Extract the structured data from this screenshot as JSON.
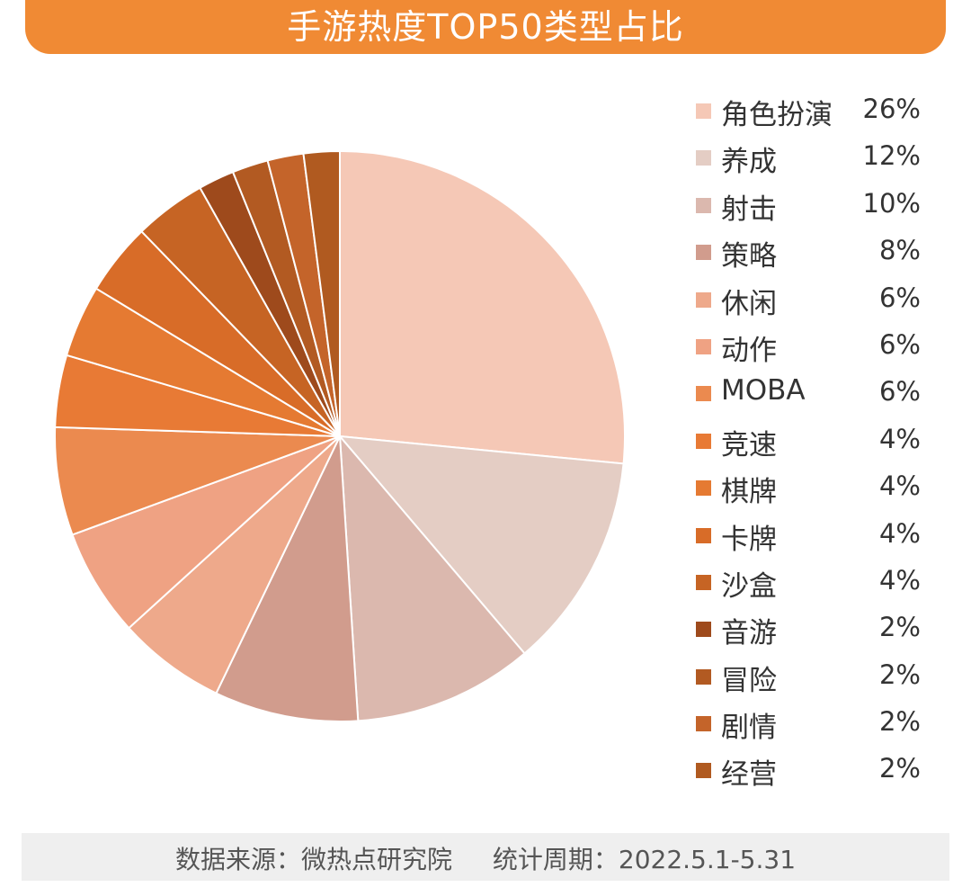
{
  "chart_data": {
    "type": "pie",
    "title": "手游热度TOP50类型占比",
    "start_angle": "12 o'clock, clockwise",
    "slices": [
      {
        "label": "角色扮演",
        "value": 26,
        "value_label": "26%",
        "color": "#f5c8b6"
      },
      {
        "label": "养成",
        "value": 12,
        "value_label": "12%",
        "color": "#e4cdc4"
      },
      {
        "label": "射击",
        "value": 10,
        "value_label": "10%",
        "color": "#dbb8ae"
      },
      {
        "label": "策略",
        "value": 8,
        "value_label": "8%",
        "color": "#d19c8d"
      },
      {
        "label": "休闲",
        "value": 6,
        "value_label": "6%",
        "color": "#eea98b"
      },
      {
        "label": "动作",
        "value": 6,
        "value_label": "6%",
        "color": "#efa283"
      },
      {
        "label": "MOBA",
        "value": 6,
        "value_label": "6%",
        "color": "#eb8a4f"
      },
      {
        "label": "竞速",
        "value": 4,
        "value_label": "4%",
        "color": "#e87a35"
      },
      {
        "label": "棋牌",
        "value": 4,
        "value_label": "4%",
        "color": "#e57a32"
      },
      {
        "label": "卡牌",
        "value": 4,
        "value_label": "4%",
        "color": "#d86c28"
      },
      {
        "label": "沙盒",
        "value": 4,
        "value_label": "4%",
        "color": "#c66424"
      },
      {
        "label": "音游",
        "value": 2,
        "value_label": "2%",
        "color": "#9e4a1c"
      },
      {
        "label": "冒险",
        "value": 2,
        "value_label": "2%",
        "color": "#b25a22"
      },
      {
        "label": "剧情",
        "value": 2,
        "value_label": "2%",
        "color": "#c4642a"
      },
      {
        "label": "经营",
        "value": 2,
        "value_label": "2%",
        "color": "#b05a20"
      }
    ]
  },
  "footer": {
    "source": "数据来源：微热点研究院",
    "period": "统计周期：2022.5.1-5.31"
  },
  "colors": {
    "header_bg": "#f08a34",
    "footer_bg": "#efefef"
  }
}
